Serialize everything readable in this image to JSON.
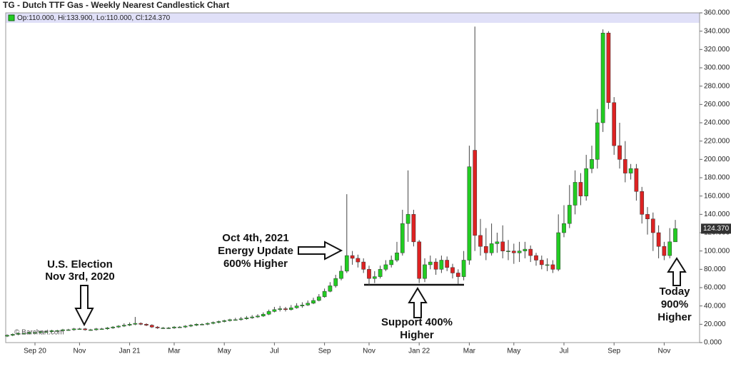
{
  "chart_data": {
    "type": "candlestick",
    "title": "TG - Dutch TTF Gas - Weekly Nearest Candlestick Chart",
    "legend_text": "Op:110.000, Hi:133.900, Lo:110.000, Cl:124.370",
    "last_label": "124.370",
    "watermark": "© Barchart.com",
    "up_color": "#22cc22",
    "down_color": "#dd2222",
    "grid": false,
    "annotations": [
      {
        "lines": [
          "U.S. Election",
          "Nov 3rd, 2020"
        ]
      },
      {
        "lines": [
          "Oct 4th, 2021",
          "Energy Update",
          "600% Higher"
        ]
      },
      {
        "lines": [
          "Support 400%",
          "Higher"
        ]
      },
      {
        "lines": [
          "Today",
          "900%",
          "Higher"
        ]
      }
    ],
    "categories": [
      null,
      null,
      null,
      null,
      null,
      "Sep 20",
      null,
      null,
      null,
      null,
      null,
      null,
      null,
      "Nov",
      null,
      null,
      null,
      null,
      null,
      null,
      null,
      null,
      "Jan 21",
      null,
      null,
      null,
      null,
      null,
      null,
      null,
      "Mar",
      null,
      null,
      null,
      null,
      null,
      null,
      null,
      null,
      "May",
      null,
      null,
      null,
      null,
      null,
      null,
      null,
      null,
      "Jul",
      null,
      null,
      null,
      null,
      null,
      null,
      null,
      null,
      "Sep",
      null,
      null,
      null,
      null,
      null,
      null,
      null,
      "Nov",
      null,
      null,
      null,
      null,
      null,
      null,
      null,
      null,
      "Jan 22",
      null,
      null,
      null,
      null,
      null,
      null,
      null,
      null,
      "Mar",
      null,
      null,
      null,
      null,
      null,
      null,
      null,
      "May",
      null,
      null,
      null,
      null,
      null,
      null,
      null,
      null,
      "Jul",
      null,
      null,
      null,
      null,
      null,
      null,
      null,
      null,
      "Sep",
      null,
      null,
      null,
      null,
      null,
      null,
      null,
      null,
      "Nov",
      null,
      null
    ],
    "open": [
      7,
      8,
      9,
      10,
      10,
      11,
      11,
      12,
      12,
      13,
      13,
      14,
      14,
      15,
      15,
      14,
      14,
      15,
      15,
      16,
      17,
      18,
      19,
      20,
      21,
      20,
      19,
      17,
      16,
      16,
      16,
      17,
      17,
      18,
      19,
      20,
      20,
      21,
      22,
      23,
      24,
      25,
      25,
      26,
      27,
      28,
      29,
      31,
      34,
      36,
      37,
      36,
      38,
      40,
      41,
      43,
      46,
      50,
      56,
      62,
      70,
      78,
      95,
      92,
      88,
      80,
      70,
      72,
      80,
      85,
      90,
      98,
      130,
      140,
      110,
      70,
      85,
      88,
      80,
      90,
      82,
      76,
      72,
      90,
      210,
      117,
      105,
      98,
      108,
      110,
      100,
      100,
      98,
      100,
      102,
      95,
      90,
      85,
      85,
      80,
      120,
      130,
      150,
      175,
      160,
      190,
      200,
      240,
      338,
      262,
      215,
      200,
      185,
      190,
      165,
      140,
      135,
      120,
      105,
      95,
      110
    ],
    "high": [
      9,
      10,
      11,
      11,
      12,
      12,
      13,
      13,
      14,
      14,
      15,
      15,
      16,
      16,
      16,
      15,
      16,
      16,
      17,
      18,
      19,
      21,
      22,
      28,
      22,
      21,
      20,
      18,
      17,
      17,
      18,
      18,
      19,
      20,
      21,
      21,
      22,
      23,
      24,
      25,
      26,
      27,
      28,
      29,
      30,
      31,
      33,
      36,
      39,
      40,
      39,
      41,
      43,
      44,
      46,
      49,
      53,
      59,
      66,
      74,
      84,
      162,
      100,
      96,
      92,
      84,
      78,
      84,
      90,
      95,
      110,
      145,
      188,
      145,
      112,
      92,
      95,
      92,
      95,
      94,
      86,
      80,
      100,
      215,
      345,
      135,
      125,
      130,
      120,
      128,
      112,
      108,
      110,
      110,
      106,
      98,
      95,
      92,
      90,
      140,
      150,
      172,
      188,
      185,
      205,
      215,
      255,
      342,
      340,
      268,
      240,
      220,
      195,
      195,
      170,
      148,
      142,
      128,
      110,
      125,
      133.9
    ],
    "low": [
      6,
      7,
      8,
      9,
      9,
      10,
      10,
      11,
      11,
      12,
      12,
      13,
      13,
      14,
      13,
      13,
      13,
      14,
      14,
      15,
      16,
      17,
      18,
      19,
      19,
      18,
      16,
      15,
      15,
      15,
      15,
      16,
      16,
      17,
      18,
      19,
      19,
      20,
      21,
      22,
      23,
      24,
      24,
      25,
      26,
      27,
      28,
      30,
      33,
      34,
      34,
      35,
      37,
      38,
      40,
      42,
      45,
      49,
      55,
      60,
      68,
      76,
      85,
      82,
      76,
      62,
      65,
      70,
      78,
      82,
      88,
      95,
      110,
      105,
      65,
      66,
      80,
      74,
      76,
      78,
      70,
      64,
      68,
      85,
      100,
      95,
      90,
      95,
      98,
      92,
      90,
      86,
      88,
      92,
      88,
      84,
      80,
      78,
      76,
      78,
      115,
      125,
      140,
      150,
      155,
      185,
      190,
      230,
      255,
      205,
      190,
      175,
      178,
      155,
      130,
      118,
      100,
      92,
      90,
      92,
      110
    ],
    "close": [
      8,
      9,
      10,
      10,
      11,
      11,
      12,
      12,
      13,
      13,
      14,
      14,
      15,
      15,
      14,
      14,
      15,
      15,
      16,
      17,
      18,
      19,
      20,
      21,
      20,
      19,
      17,
      16,
      16,
      16,
      17,
      17,
      18,
      19,
      20,
      20,
      21,
      22,
      23,
      24,
      25,
      25,
      26,
      27,
      28,
      29,
      31,
      34,
      36,
      37,
      36,
      38,
      40,
      41,
      43,
      46,
      50,
      56,
      62,
      70,
      78,
      95,
      92,
      88,
      80,
      70,
      72,
      80,
      85,
      90,
      98,
      130,
      140,
      110,
      70,
      85,
      88,
      80,
      90,
      82,
      76,
      72,
      90,
      192,
      117,
      105,
      98,
      108,
      110,
      100,
      100,
      98,
      100,
      102,
      95,
      90,
      85,
      85,
      80,
      120,
      130,
      150,
      175,
      160,
      190,
      200,
      240,
      338,
      262,
      215,
      200,
      185,
      190,
      165,
      140,
      135,
      120,
      105,
      95,
      110,
      124.37
    ],
    "ylim": [
      0,
      360
    ],
    "yticks": [
      {
        "value": 0,
        "label": "0.000"
      },
      {
        "value": 20,
        "label": "20.000"
      },
      {
        "value": 40,
        "label": "40.000"
      },
      {
        "value": 60,
        "label": "60.000"
      },
      {
        "value": 80,
        "label": "80.000"
      },
      {
        "value": 100,
        "label": "100.000"
      },
      {
        "value": 120,
        "label": "120.000"
      },
      {
        "value": 140,
        "label": "140.000"
      },
      {
        "value": 160,
        "label": "160.000"
      },
      {
        "value": 180,
        "label": "180.000"
      },
      {
        "value": 200,
        "label": "200.000"
      },
      {
        "value": 220,
        "label": "220.000"
      },
      {
        "value": 240,
        "label": "240.000"
      },
      {
        "value": 260,
        "label": "260.000"
      },
      {
        "value": 280,
        "label": "280.000"
      },
      {
        "value": 300,
        "label": "300.000"
      },
      {
        "value": 320,
        "label": "320.000"
      },
      {
        "value": 340,
        "label": "340.000"
      },
      {
        "value": 360,
        "label": "360.000"
      }
    ]
  }
}
